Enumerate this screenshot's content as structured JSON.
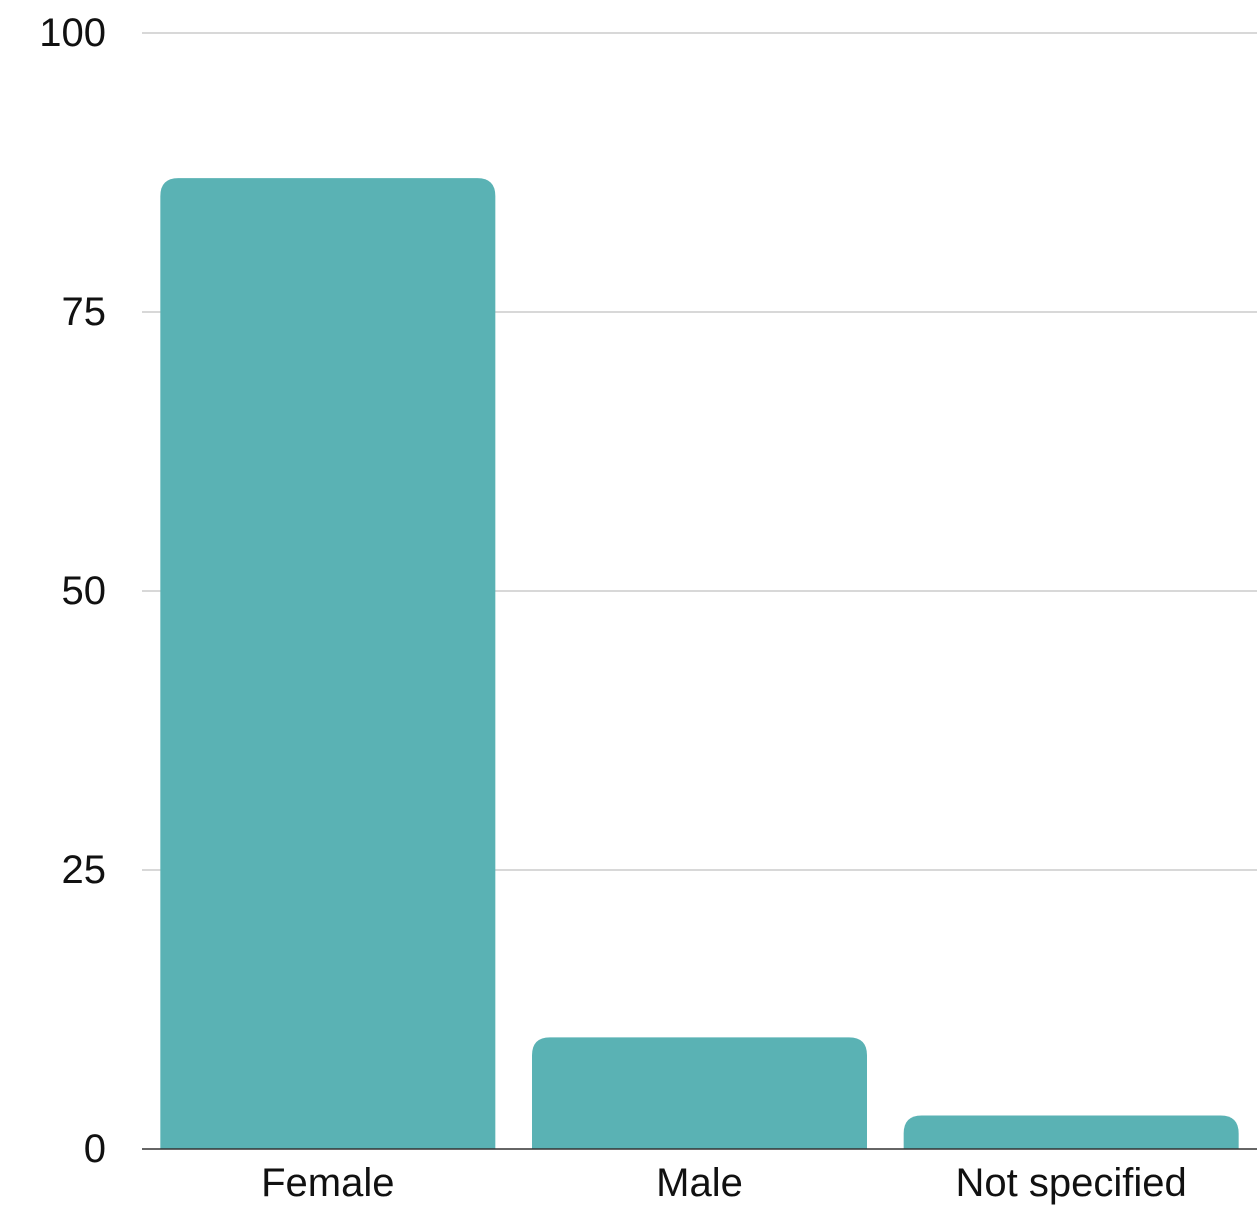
{
  "chart_data": {
    "type": "bar",
    "categories": [
      "Female",
      "Male",
      "Not specified"
    ],
    "values": [
      87,
      10,
      3
    ],
    "title": "",
    "xlabel": "",
    "ylabel": "",
    "ylim": [
      0,
      100
    ],
    "yticks": [
      "0",
      "25",
      "50",
      "75",
      "100"
    ],
    "grid": true,
    "colors": {
      "bar": "#5ab2b4",
      "grid": "#cccccc",
      "baseline": "#333333"
    }
  }
}
